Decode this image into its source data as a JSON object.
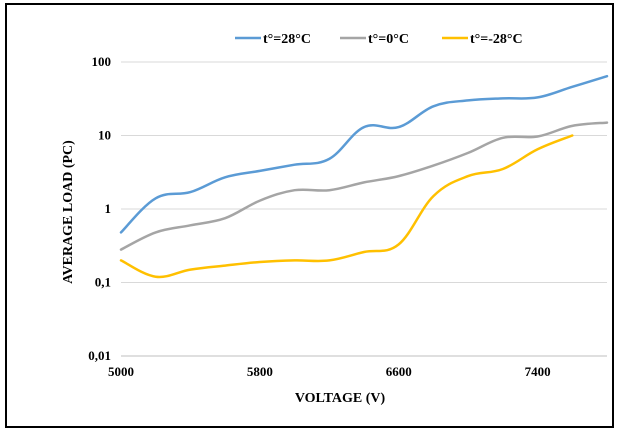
{
  "chart_data": {
    "type": "line",
    "xlabel": "VOLTAGE (V)",
    "ylabel": "AVERAGE LOAD (PC)",
    "xlim": [
      5000,
      7800
    ],
    "ylim": [
      0.01,
      100
    ],
    "yscale": "log",
    "x_ticks": [
      {
        "value": 5000,
        "label": "5000"
      },
      {
        "value": 5800,
        "label": "5800"
      },
      {
        "value": 6600,
        "label": "6600"
      },
      {
        "value": 7400,
        "label": "7400"
      }
    ],
    "y_ticks": [
      {
        "value": 100,
        "label": "100"
      },
      {
        "value": 10,
        "label": "10"
      },
      {
        "value": 1,
        "label": "1"
      },
      {
        "value": 0.1,
        "label": "0,1"
      },
      {
        "value": 0.01,
        "label": "0,01"
      }
    ],
    "grid": "horizontal",
    "legend_position": "top",
    "series": [
      {
        "name": "t°=28°C",
        "color": "#5b9bd5",
        "x": [
          5000,
          5200,
          5400,
          5600,
          5800,
          6000,
          6200,
          6400,
          6600,
          6800,
          7000,
          7200,
          7400,
          7600,
          7800
        ],
        "y": [
          0.48,
          1.4,
          1.7,
          2.7,
          3.3,
          4.0,
          4.8,
          13,
          13,
          25,
          30,
          32,
          33,
          46,
          64
        ]
      },
      {
        "name": "t°=0°C",
        "color": "#a5a5a5",
        "x": [
          5000,
          5200,
          5400,
          5600,
          5800,
          6000,
          6200,
          6400,
          6600,
          6800,
          7000,
          7200,
          7400,
          7600,
          7800
        ],
        "y": [
          0.28,
          0.48,
          0.6,
          0.75,
          1.3,
          1.8,
          1.8,
          2.3,
          2.8,
          3.9,
          5.8,
          9.3,
          9.7,
          13.5,
          15
        ]
      },
      {
        "name": "t°=-28°C",
        "color": "#ffc000",
        "x": [
          5000,
          5200,
          5400,
          5600,
          5800,
          6000,
          6200,
          6400,
          6600,
          6800,
          7000,
          7200,
          7400,
          7600
        ],
        "y": [
          0.2,
          0.12,
          0.15,
          0.17,
          0.19,
          0.2,
          0.2,
          0.26,
          0.33,
          1.5,
          2.8,
          3.5,
          6.5,
          10
        ]
      }
    ]
  }
}
